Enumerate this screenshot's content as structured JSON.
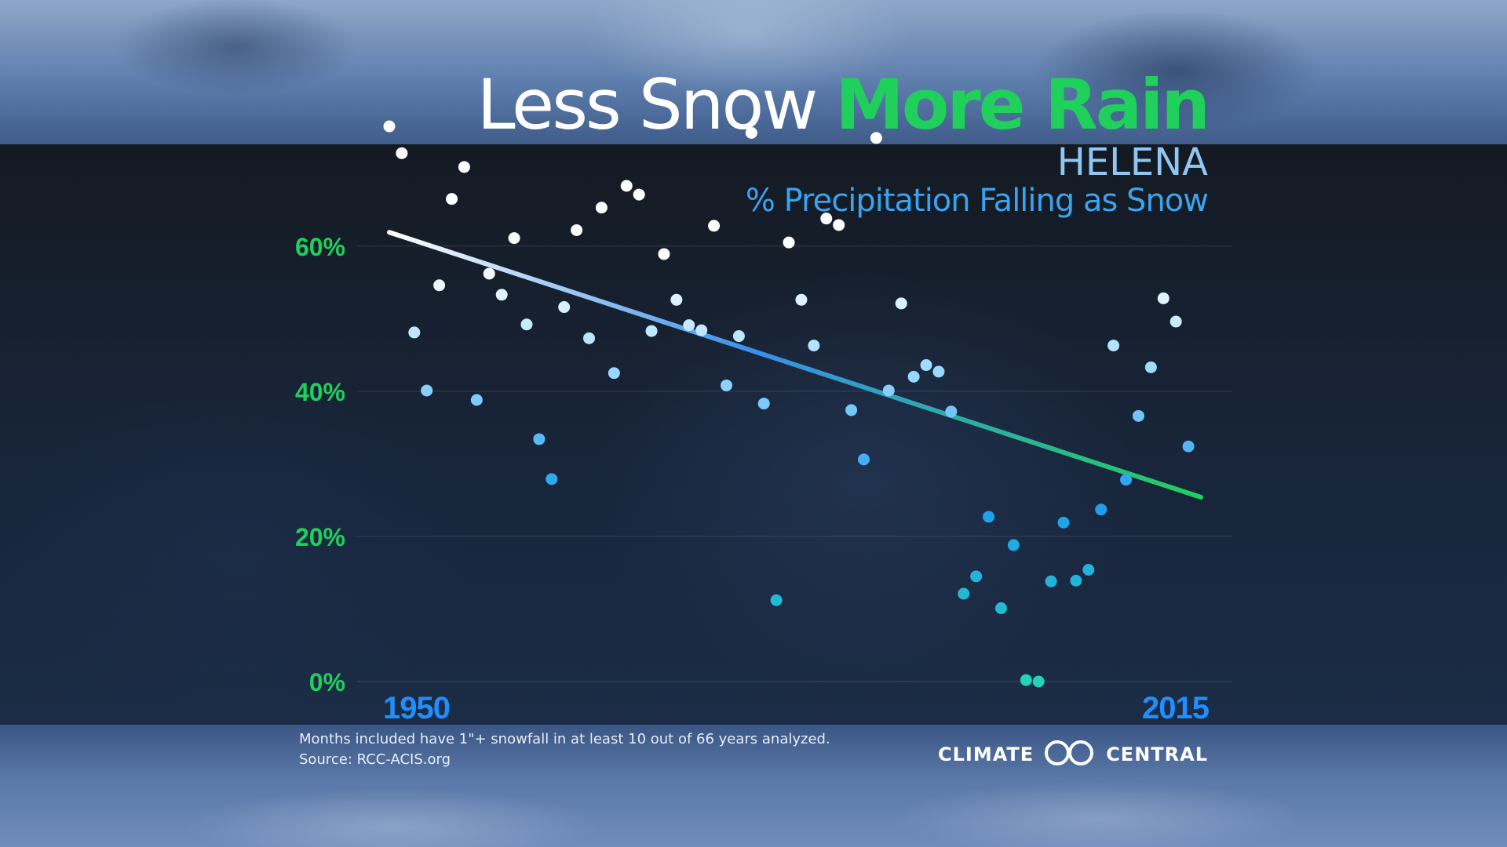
{
  "title": {
    "part1": "Less Snow ",
    "part2": "More Rain"
  },
  "subtitle": {
    "city": "HELENA",
    "metric": "% Precipitation Falling as Snow"
  },
  "footnote": {
    "line1": "Months included have 1\"+ snowfall in at least 10 out of 66 years analyzed.",
    "line2": "Source: RCC-ACIS.org"
  },
  "logo": {
    "left": "CLIMATE",
    "right": "CENTRAL",
    "icon": "climate-central-logo-icon"
  },
  "colors": {
    "title_white": "#ffffff",
    "title_green": "#1fd05b",
    "axis_green": "#1fd05b",
    "axis_blue": "#1f8fff",
    "trend_start": "#ffffff",
    "trend_mid": "#3a8ee8",
    "trend_end": "#1fd05b"
  },
  "chart_data": {
    "type": "scatter",
    "x_tick_labels": [
      "1950",
      "2015"
    ],
    "xlim": [
      1950,
      2015
    ],
    "ylim": [
      0,
      75
    ],
    "y_ticks": [
      0,
      20,
      40,
      60
    ],
    "y_tick_labels": [
      "0%",
      "20%",
      "40%",
      "60%"
    ],
    "grid": true,
    "trendline": {
      "start": [
        1950,
        61.9
      ],
      "end": [
        2015,
        25.4
      ]
    },
    "points": [
      [
        1950,
        76.5
      ],
      [
        1951,
        72.8
      ],
      [
        1952,
        48.1
      ],
      [
        1953,
        40.1
      ],
      [
        1954,
        54.6
      ],
      [
        1955,
        66.5
      ],
      [
        1956,
        70.9
      ],
      [
        1957,
        38.8
      ],
      [
        1958,
        56.2
      ],
      [
        1959,
        53.3
      ],
      [
        1960,
        61.1
      ],
      [
        1961,
        49.2
      ],
      [
        1962,
        33.4
      ],
      [
        1963,
        27.9
      ],
      [
        1964,
        51.6
      ],
      [
        1965,
        62.2
      ],
      [
        1966,
        47.3
      ],
      [
        1967,
        65.3
      ],
      [
        1968,
        42.5
      ],
      [
        1969,
        68.3
      ],
      [
        1970,
        67.1
      ],
      [
        1971,
        48.3
      ],
      [
        1972,
        58.9
      ],
      [
        1973,
        52.6
      ],
      [
        1974,
        49.1
      ],
      [
        1975,
        48.4
      ],
      [
        1976,
        62.8
      ],
      [
        1977,
        40.8
      ],
      [
        1978,
        47.6
      ],
      [
        1979,
        75.6
      ],
      [
        1980,
        38.3
      ],
      [
        1981,
        11.2
      ],
      [
        1982,
        60.5
      ],
      [
        1983,
        52.6
      ],
      [
        1984,
        46.3
      ],
      [
        1985,
        63.8
      ],
      [
        1986,
        62.9
      ],
      [
        1987,
        37.4
      ],
      [
        1988,
        30.6
      ],
      [
        1989,
        74.9
      ],
      [
        1990,
        40.1
      ],
      [
        1991,
        52.1
      ],
      [
        1992,
        42.0
      ],
      [
        1993,
        43.6
      ],
      [
        1994,
        42.7
      ],
      [
        1995,
        37.2
      ],
      [
        1996,
        12.1
      ],
      [
        1997,
        14.5
      ],
      [
        1998,
        22.7
      ],
      [
        1999,
        10.1
      ],
      [
        2000,
        18.8
      ],
      [
        2001,
        0.2
      ],
      [
        2002,
        0.0
      ],
      [
        2003,
        13.8
      ],
      [
        2004,
        21.9
      ],
      [
        2005,
        13.9
      ],
      [
        2006,
        15.4
      ],
      [
        2007,
        23.7
      ],
      [
        2008,
        46.3
      ],
      [
        2009,
        27.8
      ],
      [
        2010,
        36.6
      ],
      [
        2011,
        43.3
      ],
      [
        2012,
        52.8
      ],
      [
        2013,
        49.6
      ],
      [
        2014,
        32.4
      ]
    ]
  }
}
